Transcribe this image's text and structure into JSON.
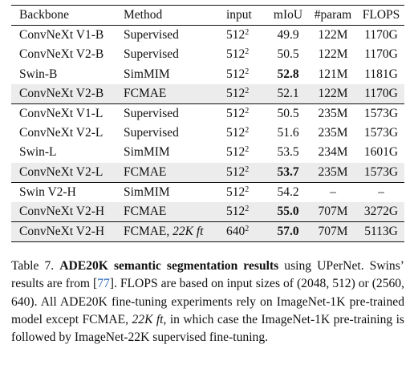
{
  "table": {
    "headers": {
      "backbone": "Backbone",
      "method": "Method",
      "input": "input",
      "miou": "mIoU",
      "param": "#param",
      "flops": "FLOPS"
    },
    "groups": [
      {
        "rows": [
          {
            "backbone": "ConvNeXt V1-B",
            "method": "Supervised",
            "input_base": "512",
            "input_exp": "2",
            "miou": "49.9",
            "param": "122M",
            "flops": "1170G"
          },
          {
            "backbone": "ConvNeXt V2-B",
            "method": "Supervised",
            "input_base": "512",
            "input_exp": "2",
            "miou": "50.5",
            "param": "122M",
            "flops": "1170G"
          },
          {
            "backbone": "Swin-B",
            "method": "SimMIM",
            "input_base": "512",
            "input_exp": "2",
            "miou": "52.8",
            "param": "121M",
            "flops": "1181G"
          },
          {
            "backbone": "ConvNeXt V2-B",
            "method": "FCMAE",
            "input_base": "512",
            "input_exp": "2",
            "miou": "52.1",
            "param": "122M",
            "flops": "1170G"
          }
        ]
      },
      {
        "rows": [
          {
            "backbone": "ConvNeXt V1-L",
            "method": "Supervised",
            "input_base": "512",
            "input_exp": "2",
            "miou": "50.5",
            "param": "235M",
            "flops": "1573G"
          },
          {
            "backbone": "ConvNeXt V2-L",
            "method": "Supervised",
            "input_base": "512",
            "input_exp": "2",
            "miou": "51.6",
            "param": "235M",
            "flops": "1573G"
          },
          {
            "backbone": "Swin-L",
            "method": "SimMIM",
            "input_base": "512",
            "input_exp": "2",
            "miou": "53.5",
            "param": "234M",
            "flops": "1601G"
          },
          {
            "backbone": "ConvNeXt V2-L",
            "method": "FCMAE",
            "input_base": "512",
            "input_exp": "2",
            "miou": "53.7",
            "param": "235M",
            "flops": "1573G"
          }
        ]
      },
      {
        "rows": [
          {
            "backbone": "Swin V2-H",
            "method": "SimMIM",
            "input_base": "512",
            "input_exp": "2",
            "miou": "54.2",
            "param": "–",
            "flops": "–"
          },
          {
            "backbone": "ConvNeXt V2-H",
            "method": "FCMAE",
            "input_base": "512",
            "input_exp": "2",
            "miou": "55.0",
            "param": "707M",
            "flops": "3272G"
          }
        ]
      },
      {
        "rows": [
          {
            "backbone": "ConvNeXt V2-H",
            "method": "FCMAE,",
            "method_italic": "22K ft",
            "input_base": "640",
            "input_exp": "2",
            "miou": "57.0",
            "param": "707M",
            "flops": "5113G"
          }
        ]
      }
    ]
  },
  "caption": {
    "label": "Table 7.",
    "title": "ADE20K semantic segmentation results",
    "text_1": "using UPerNet. Swins’ results are from [",
    "ref": "77",
    "text_2": "]. FLOPS are based on input sizes of (2048, 512) or (2560, 640). All ADE20K fine-tuning experiments rely on ImageNet-1K pre-trained model except FCMAE,",
    "italic": "22K ft",
    "text_3": ", in which case the ImageNet-1K pre-training is followed by ImageNet-22K supervised fine-tuning."
  }
}
